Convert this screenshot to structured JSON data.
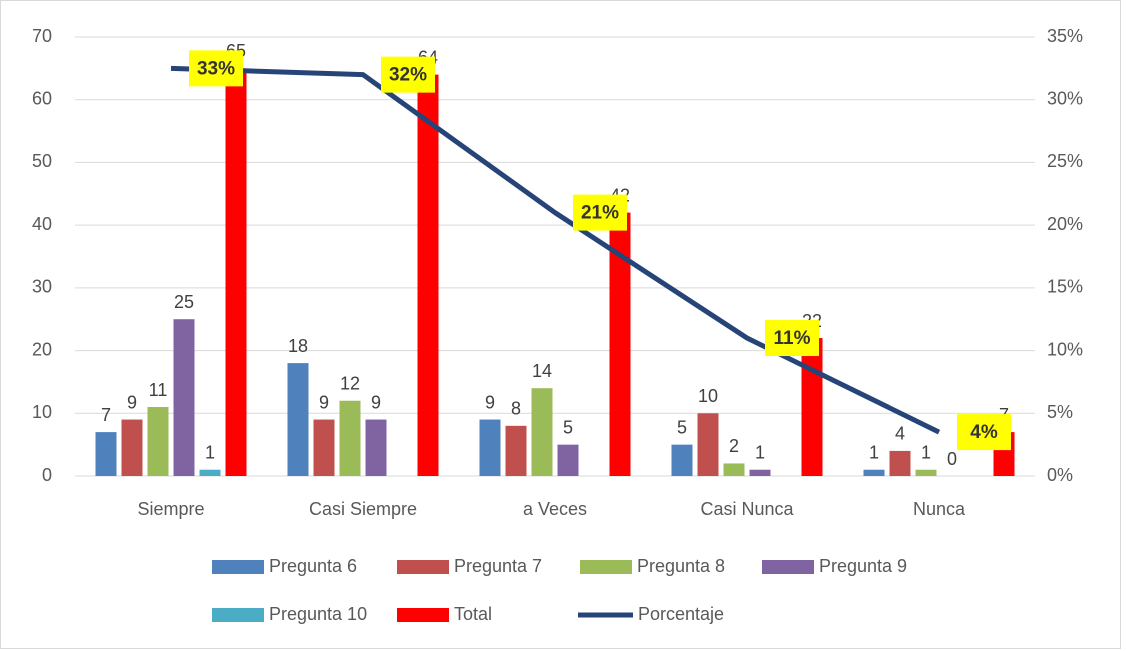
{
  "chart_data": {
    "type": "bar",
    "categories": [
      "Siempre",
      "Casi Siempre",
      "a Veces",
      "Casi Nunca",
      "Nunca"
    ],
    "series": [
      {
        "name": "Pregunta 6",
        "color": "#4f81bd",
        "values": [
          7,
          18,
          9,
          5,
          1
        ]
      },
      {
        "name": "Pregunta 7",
        "color": "#c0504d",
        "values": [
          9,
          9,
          8,
          10,
          4
        ]
      },
      {
        "name": "Pregunta 8",
        "color": "#9bbb59",
        "values": [
          11,
          12,
          14,
          2,
          1
        ]
      },
      {
        "name": "Pregunta 9",
        "color": "#8064a2",
        "values": [
          25,
          9,
          5,
          1,
          0
        ]
      },
      {
        "name": "Pregunta 10",
        "color": "#4bacc6",
        "values": [
          1,
          null,
          null,
          null,
          null
        ]
      },
      {
        "name": "Total",
        "color": "#ff0000",
        "values": [
          65,
          64,
          42,
          22,
          7
        ]
      },
      {
        "name": "Porcentaje",
        "color": "#264478",
        "type": "line",
        "axis": "y2",
        "values": [
          32.5,
          32,
          21,
          11,
          3.5
        ],
        "value_labels": [
          "33%",
          "32%",
          "21%",
          "11%",
          "4%"
        ]
      }
    ],
    "ylim": [
      0,
      70
    ],
    "yticks": [
      0,
      10,
      20,
      30,
      40,
      50,
      60,
      70
    ],
    "y2lim": [
      0,
      35
    ],
    "y2ticks": [
      {
        "value": 0,
        "label": "0%"
      },
      {
        "value": 5,
        "label": "5%"
      },
      {
        "value": 10,
        "label": "10%"
      },
      {
        "value": 15,
        "label": "15%"
      },
      {
        "value": 20,
        "label": "20%"
      },
      {
        "value": 25,
        "label": "25%"
      },
      {
        "value": 30,
        "label": "30%"
      },
      {
        "value": 35,
        "label": "35%"
      }
    ],
    "grid": true
  }
}
